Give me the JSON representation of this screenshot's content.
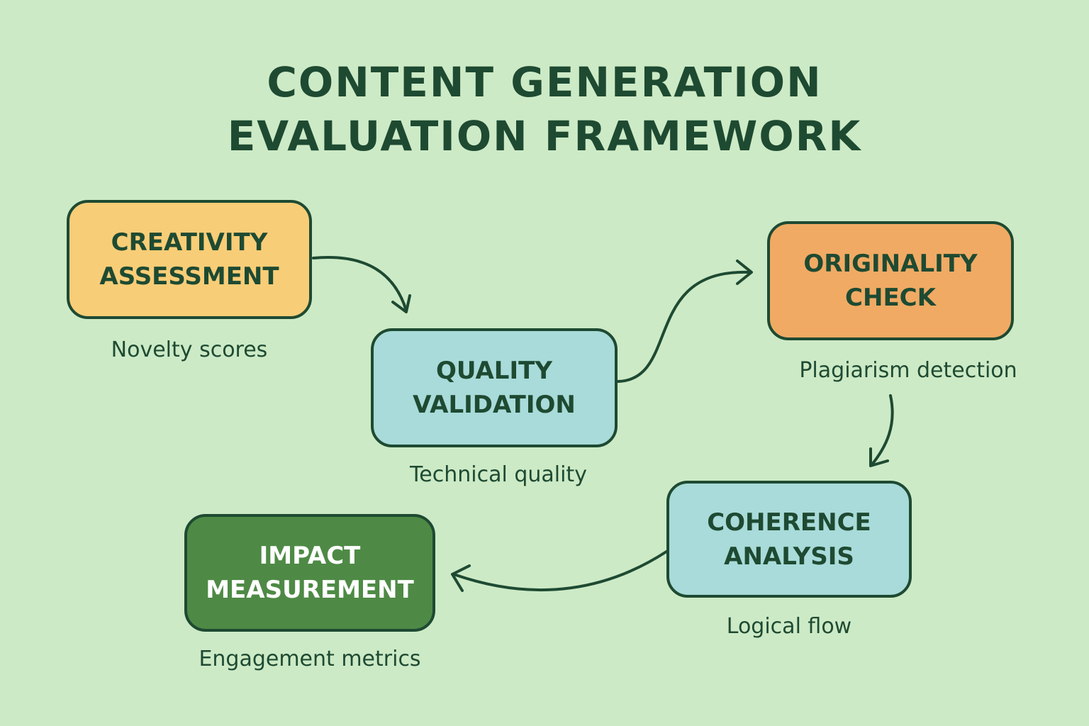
{
  "title": {
    "line1": "CONTENT GENERATION",
    "line2": "EVALUATION FRAMEWORK"
  },
  "colors": {
    "background": "#cdeac6",
    "text": "#1e4a32",
    "creativity": "#f8cd77",
    "quality": "#a8dbd9",
    "originality": "#f0aa64",
    "coherence": "#a8dbd9",
    "impact": "#4e8a45"
  },
  "steps": [
    {
      "id": "creativity",
      "line1": "CREATIVITY",
      "line2": "ASSESSMENT",
      "caption": "Novelty scores"
    },
    {
      "id": "quality",
      "line1": "QUALITY",
      "line2": "VALIDATION",
      "caption": "Technical quality"
    },
    {
      "id": "originality",
      "line1": "ORIGINALITY",
      "line2": "CHECK",
      "caption": "Plagiarism detection"
    },
    {
      "id": "coherence",
      "line1": "COHERENCE",
      "line2": "ANALYSIS",
      "caption": "Logical flow"
    },
    {
      "id": "impact",
      "line1": "IMPACT",
      "line2": "MEASUREMENT",
      "caption": "Engagement metrics"
    }
  ],
  "connections": [
    {
      "from": "creativity",
      "to": "quality"
    },
    {
      "from": "quality",
      "to": "originality"
    },
    {
      "from": "originality",
      "to": "coherence"
    },
    {
      "from": "coherence",
      "to": "impact"
    }
  ]
}
